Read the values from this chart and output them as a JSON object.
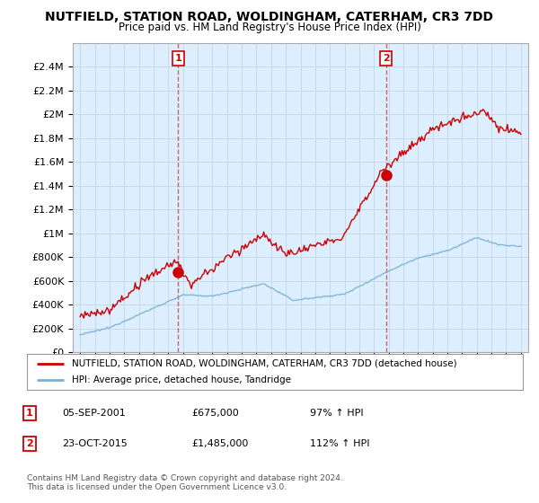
{
  "title": "NUTFIELD, STATION ROAD, WOLDINGHAM, CATERHAM, CR3 7DD",
  "subtitle": "Price paid vs. HM Land Registry's House Price Index (HPI)",
  "legend_line1": "NUTFIELD, STATION ROAD, WOLDINGHAM, CATERHAM, CR3 7DD (detached house)",
  "legend_line2": "HPI: Average price, detached house, Tandridge",
  "annotation1_label": "1",
  "annotation1_date": "05-SEP-2001",
  "annotation1_price": "£675,000",
  "annotation1_hpi": "97% ↑ HPI",
  "annotation2_label": "2",
  "annotation2_date": "23-OCT-2015",
  "annotation2_price": "£1,485,000",
  "annotation2_hpi": "112% ↑ HPI",
  "footer": "Contains HM Land Registry data © Crown copyright and database right 2024.\nThis data is licensed under the Open Government Licence v3.0.",
  "red_color": "#cc0000",
  "blue_color": "#7ab0d4",
  "dashed_color": "#cc6666",
  "plot_bg_color": "#ddeeff",
  "background_color": "#ffffff",
  "grid_color": "#c8d8e8",
  "ylim_min": 0,
  "ylim_max": 2600000,
  "yticks": [
    0,
    200000,
    400000,
    600000,
    800000,
    1000000,
    1200000,
    1400000,
    1600000,
    1800000,
    2000000,
    2200000,
    2400000
  ],
  "xlim_min": 1994.5,
  "xlim_max": 2025.5,
  "sale1_x": 2001.68,
  "sale1_y": 675000,
  "sale2_x": 2015.81,
  "sale2_y": 1485000
}
